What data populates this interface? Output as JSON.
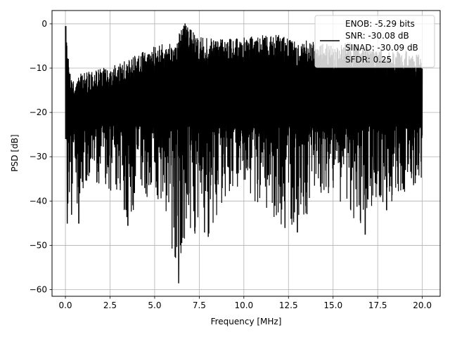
{
  "chart_data": {
    "type": "line",
    "xlabel": "Frequency [MHz]",
    "ylabel": "PSD [dB]",
    "xlim": [
      -0.75,
      21.0
    ],
    "ylim": [
      -61.5,
      3.0
    ],
    "x_ticks": [
      0.0,
      2.5,
      5.0,
      7.5,
      10.0,
      12.5,
      15.0,
      17.5,
      20.0
    ],
    "x_tick_labels": [
      "0.0",
      "2.5",
      "5.0",
      "7.5",
      "10.0",
      "12.5",
      "15.0",
      "17.5",
      "20.0"
    ],
    "y_ticks": [
      0,
      -10,
      -20,
      -30,
      -40,
      -50,
      -60
    ],
    "y_tick_labels": [
      "0",
      "−10",
      "−20",
      "−30",
      "−40",
      "−50",
      "−60"
    ],
    "grid": true,
    "legend_position": "top-right",
    "legend_entries": [
      "ENOB: -5.29 bits",
      "SNR: -30.08 dB",
      "SINAD: -30.09 dB",
      "SFDR: 0.25"
    ],
    "series": [
      {
        "color": "#000000",
        "description_of_shape": "dense noise spectrum",
        "upper_envelope": [
          [
            0.0,
            -0.5
          ],
          [
            0.3,
            -12
          ],
          [
            1.0,
            -11
          ],
          [
            2.0,
            -10
          ],
          [
            3.0,
            -9
          ],
          [
            4.0,
            -7
          ],
          [
            5.0,
            -5
          ],
          [
            6.0,
            -4
          ],
          [
            6.7,
            0
          ],
          [
            7.5,
            -3
          ],
          [
            9.0,
            -3.5
          ],
          [
            10.0,
            -3
          ],
          [
            11.0,
            -2.5
          ],
          [
            12.0,
            -2.5
          ],
          [
            13.0,
            -4
          ],
          [
            14.0,
            -3.5
          ],
          [
            15.0,
            -5
          ],
          [
            16.0,
            -4
          ],
          [
            17.0,
            -5
          ],
          [
            18.0,
            -6
          ],
          [
            19.0,
            -6
          ],
          [
            20.0,
            -7
          ]
        ],
        "lower_envelope": [
          [
            0.0,
            -8
          ],
          [
            0.1,
            -45
          ],
          [
            1.0,
            -38
          ],
          [
            2.0,
            -36
          ],
          [
            3.5,
            -45
          ],
          [
            5.0,
            -38
          ],
          [
            6.3,
            -58
          ],
          [
            7.5,
            -45
          ],
          [
            8.0,
            -48
          ],
          [
            9.0,
            -40
          ],
          [
            10.0,
            -38
          ],
          [
            12.3,
            -46
          ],
          [
            13.0,
            -47
          ],
          [
            14.0,
            -40
          ],
          [
            15.0,
            -38
          ],
          [
            16.7,
            -47
          ],
          [
            17.3,
            -40
          ],
          [
            17.8,
            -42
          ],
          [
            19.0,
            -38
          ],
          [
            20.0,
            -37
          ]
        ],
        "points": [
          [
            0.0,
            -0.5
          ],
          [
            0.1,
            -45
          ],
          [
            0.35,
            -43
          ],
          [
            0.75,
            -45
          ],
          [
            3.5,
            -45.5
          ],
          [
            6.35,
            -58.5
          ],
          [
            6.7,
            0.0
          ],
          [
            7.8,
            -47
          ],
          [
            8.0,
            -48
          ],
          [
            12.3,
            -46
          ],
          [
            13.0,
            -47
          ],
          [
            16.8,
            -47.5
          ],
          [
            18.0,
            -42
          ]
        ]
      }
    ]
  }
}
